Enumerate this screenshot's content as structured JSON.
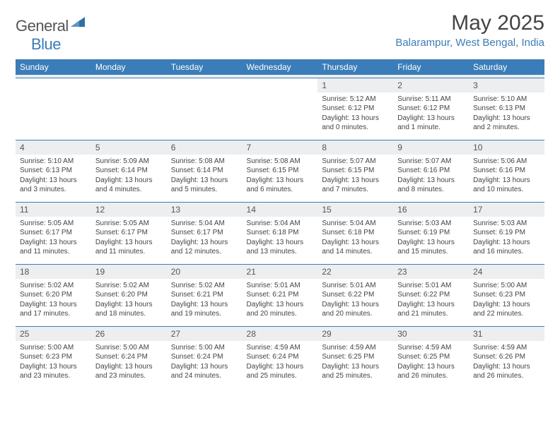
{
  "logo": {
    "left": "General",
    "right": "Blue"
  },
  "title": "May 2025",
  "subtitle": "Balarampur, West Bengal, India",
  "colors": {
    "header_bg": "#3a7db8",
    "header_fg": "#ffffff",
    "daynum_bg": "#eceef0",
    "border": "#3a7db8",
    "text": "#444444"
  },
  "days_of_week": [
    "Sunday",
    "Monday",
    "Tuesday",
    "Wednesday",
    "Thursday",
    "Friday",
    "Saturday"
  ],
  "weeks": [
    [
      {
        "empty": true
      },
      {
        "empty": true
      },
      {
        "empty": true
      },
      {
        "empty": true
      },
      {
        "num": "1",
        "sunrise": "Sunrise: 5:12 AM",
        "sunset": "Sunset: 6:12 PM",
        "day1": "Daylight: 13 hours",
        "day2": "and 0 minutes."
      },
      {
        "num": "2",
        "sunrise": "Sunrise: 5:11 AM",
        "sunset": "Sunset: 6:12 PM",
        "day1": "Daylight: 13 hours",
        "day2": "and 1 minute."
      },
      {
        "num": "3",
        "sunrise": "Sunrise: 5:10 AM",
        "sunset": "Sunset: 6:13 PM",
        "day1": "Daylight: 13 hours",
        "day2": "and 2 minutes."
      }
    ],
    [
      {
        "num": "4",
        "sunrise": "Sunrise: 5:10 AM",
        "sunset": "Sunset: 6:13 PM",
        "day1": "Daylight: 13 hours",
        "day2": "and 3 minutes."
      },
      {
        "num": "5",
        "sunrise": "Sunrise: 5:09 AM",
        "sunset": "Sunset: 6:14 PM",
        "day1": "Daylight: 13 hours",
        "day2": "and 4 minutes."
      },
      {
        "num": "6",
        "sunrise": "Sunrise: 5:08 AM",
        "sunset": "Sunset: 6:14 PM",
        "day1": "Daylight: 13 hours",
        "day2": "and 5 minutes."
      },
      {
        "num": "7",
        "sunrise": "Sunrise: 5:08 AM",
        "sunset": "Sunset: 6:15 PM",
        "day1": "Daylight: 13 hours",
        "day2": "and 6 minutes."
      },
      {
        "num": "8",
        "sunrise": "Sunrise: 5:07 AM",
        "sunset": "Sunset: 6:15 PM",
        "day1": "Daylight: 13 hours",
        "day2": "and 7 minutes."
      },
      {
        "num": "9",
        "sunrise": "Sunrise: 5:07 AM",
        "sunset": "Sunset: 6:16 PM",
        "day1": "Daylight: 13 hours",
        "day2": "and 8 minutes."
      },
      {
        "num": "10",
        "sunrise": "Sunrise: 5:06 AM",
        "sunset": "Sunset: 6:16 PM",
        "day1": "Daylight: 13 hours",
        "day2": "and 10 minutes."
      }
    ],
    [
      {
        "num": "11",
        "sunrise": "Sunrise: 5:05 AM",
        "sunset": "Sunset: 6:17 PM",
        "day1": "Daylight: 13 hours",
        "day2": "and 11 minutes."
      },
      {
        "num": "12",
        "sunrise": "Sunrise: 5:05 AM",
        "sunset": "Sunset: 6:17 PM",
        "day1": "Daylight: 13 hours",
        "day2": "and 11 minutes."
      },
      {
        "num": "13",
        "sunrise": "Sunrise: 5:04 AM",
        "sunset": "Sunset: 6:17 PM",
        "day1": "Daylight: 13 hours",
        "day2": "and 12 minutes."
      },
      {
        "num": "14",
        "sunrise": "Sunrise: 5:04 AM",
        "sunset": "Sunset: 6:18 PM",
        "day1": "Daylight: 13 hours",
        "day2": "and 13 minutes."
      },
      {
        "num": "15",
        "sunrise": "Sunrise: 5:04 AM",
        "sunset": "Sunset: 6:18 PM",
        "day1": "Daylight: 13 hours",
        "day2": "and 14 minutes."
      },
      {
        "num": "16",
        "sunrise": "Sunrise: 5:03 AM",
        "sunset": "Sunset: 6:19 PM",
        "day1": "Daylight: 13 hours",
        "day2": "and 15 minutes."
      },
      {
        "num": "17",
        "sunrise": "Sunrise: 5:03 AM",
        "sunset": "Sunset: 6:19 PM",
        "day1": "Daylight: 13 hours",
        "day2": "and 16 minutes."
      }
    ],
    [
      {
        "num": "18",
        "sunrise": "Sunrise: 5:02 AM",
        "sunset": "Sunset: 6:20 PM",
        "day1": "Daylight: 13 hours",
        "day2": "and 17 minutes."
      },
      {
        "num": "19",
        "sunrise": "Sunrise: 5:02 AM",
        "sunset": "Sunset: 6:20 PM",
        "day1": "Daylight: 13 hours",
        "day2": "and 18 minutes."
      },
      {
        "num": "20",
        "sunrise": "Sunrise: 5:02 AM",
        "sunset": "Sunset: 6:21 PM",
        "day1": "Daylight: 13 hours",
        "day2": "and 19 minutes."
      },
      {
        "num": "21",
        "sunrise": "Sunrise: 5:01 AM",
        "sunset": "Sunset: 6:21 PM",
        "day1": "Daylight: 13 hours",
        "day2": "and 20 minutes."
      },
      {
        "num": "22",
        "sunrise": "Sunrise: 5:01 AM",
        "sunset": "Sunset: 6:22 PM",
        "day1": "Daylight: 13 hours",
        "day2": "and 20 minutes."
      },
      {
        "num": "23",
        "sunrise": "Sunrise: 5:01 AM",
        "sunset": "Sunset: 6:22 PM",
        "day1": "Daylight: 13 hours",
        "day2": "and 21 minutes."
      },
      {
        "num": "24",
        "sunrise": "Sunrise: 5:00 AM",
        "sunset": "Sunset: 6:23 PM",
        "day1": "Daylight: 13 hours",
        "day2": "and 22 minutes."
      }
    ],
    [
      {
        "num": "25",
        "sunrise": "Sunrise: 5:00 AM",
        "sunset": "Sunset: 6:23 PM",
        "day1": "Daylight: 13 hours",
        "day2": "and 23 minutes."
      },
      {
        "num": "26",
        "sunrise": "Sunrise: 5:00 AM",
        "sunset": "Sunset: 6:24 PM",
        "day1": "Daylight: 13 hours",
        "day2": "and 23 minutes."
      },
      {
        "num": "27",
        "sunrise": "Sunrise: 5:00 AM",
        "sunset": "Sunset: 6:24 PM",
        "day1": "Daylight: 13 hours",
        "day2": "and 24 minutes."
      },
      {
        "num": "28",
        "sunrise": "Sunrise: 4:59 AM",
        "sunset": "Sunset: 6:24 PM",
        "day1": "Daylight: 13 hours",
        "day2": "and 25 minutes."
      },
      {
        "num": "29",
        "sunrise": "Sunrise: 4:59 AM",
        "sunset": "Sunset: 6:25 PM",
        "day1": "Daylight: 13 hours",
        "day2": "and 25 minutes."
      },
      {
        "num": "30",
        "sunrise": "Sunrise: 4:59 AM",
        "sunset": "Sunset: 6:25 PM",
        "day1": "Daylight: 13 hours",
        "day2": "and 26 minutes."
      },
      {
        "num": "31",
        "sunrise": "Sunrise: 4:59 AM",
        "sunset": "Sunset: 6:26 PM",
        "day1": "Daylight: 13 hours",
        "day2": "and 26 minutes."
      }
    ]
  ]
}
